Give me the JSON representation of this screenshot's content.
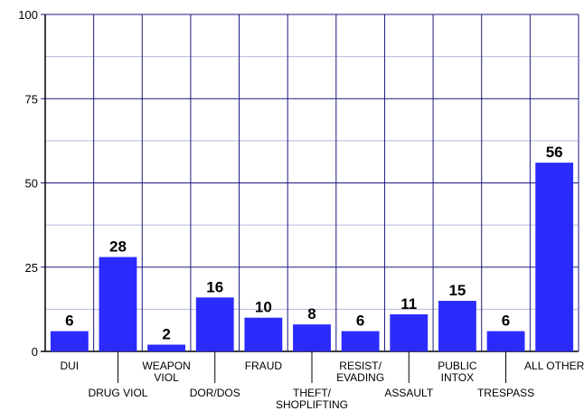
{
  "chart_data": {
    "type": "bar",
    "categories": [
      [
        "DUI"
      ],
      [
        "DRUG VIOL"
      ],
      [
        "WEAPON",
        "VIOL"
      ],
      [
        "DOR/DOS"
      ],
      [
        "FRAUD"
      ],
      [
        "THEFT/",
        "SHOPLIFTING"
      ],
      [
        "RESIST/",
        "EVADING"
      ],
      [
        "ASSAULT"
      ],
      [
        "PUBLIC",
        "INTOX"
      ],
      [
        "TRESPASS"
      ],
      [
        "ALL OTHER"
      ]
    ],
    "values": [
      6,
      28,
      2,
      16,
      10,
      8,
      6,
      11,
      15,
      6,
      56
    ],
    "ylim": [
      0,
      100
    ],
    "yticks": [
      0,
      25,
      50,
      75,
      100
    ],
    "grid": true,
    "colors": {
      "bar": "#2b2bff",
      "major_grid": "#1a1a80",
      "minor_grid": "#b8b8e0",
      "vertical_grid": "#1a1a80"
    }
  }
}
